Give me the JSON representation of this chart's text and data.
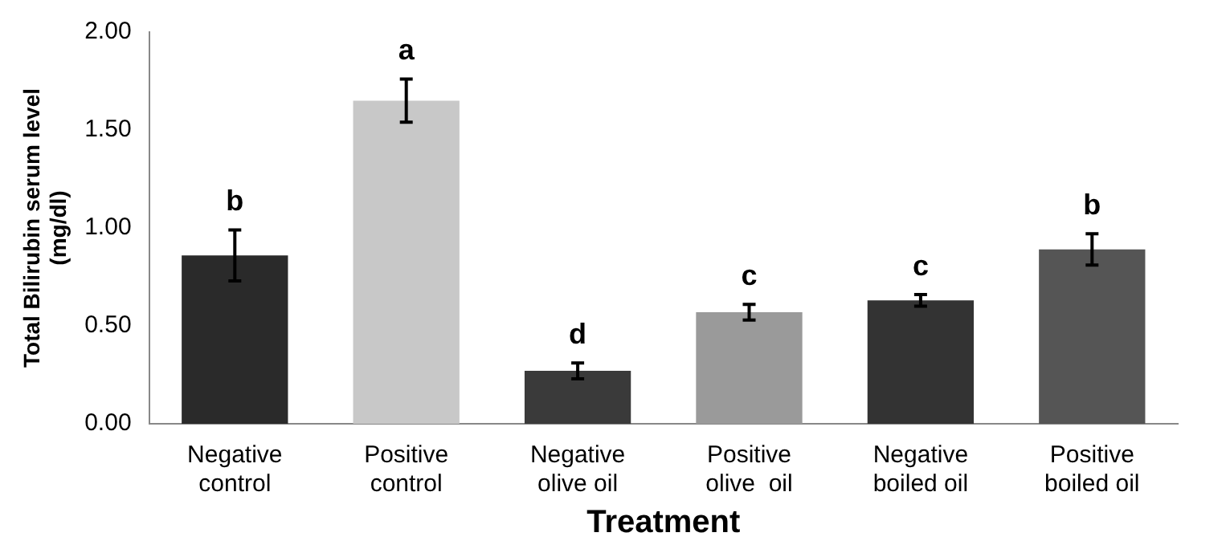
{
  "chart_data": {
    "type": "bar",
    "xlabel": "Treatment",
    "ylabel": "Total Bilirubin serum level (mg/dl)",
    "categories": [
      "Negative control",
      "Positive control",
      "Negative olive oil",
      "Positive olive  oil",
      "Negative boiled oil",
      "Positive boiled oil"
    ],
    "values": [
      0.86,
      1.65,
      0.27,
      0.57,
      0.63,
      0.89
    ],
    "errors": [
      0.13,
      0.11,
      0.04,
      0.04,
      0.03,
      0.08
    ],
    "colors": [
      "#2a2a2a",
      "#c8c8c8",
      "#3a3a3a",
      "#9a9a9a",
      "#333333",
      "#555555"
    ],
    "ylim": [
      0,
      2
    ],
    "yticks": [
      {
        "value": 0,
        "label": "0.00"
      },
      {
        "value": 0.5,
        "label": "0.50"
      },
      {
        "value": 1,
        "label": "1.00"
      },
      {
        "value": 1.5,
        "label": "1.50"
      },
      {
        "value": 2,
        "label": "2.00"
      }
    ],
    "grid": false,
    "annotations": [
      {
        "text": "b",
        "x": "Negative control",
        "y": 0.99
      },
      {
        "text": "a",
        "x": "Positive control",
        "y": 1.76
      },
      {
        "text": "d",
        "x": "Negative olive oil",
        "y": 0.31
      },
      {
        "text": "c",
        "x": "Positive olive  oil",
        "y": 0.61
      },
      {
        "text": "c",
        "x": "Negative boiled oil",
        "y": 0.66
      },
      {
        "text": "b",
        "x": "Positive boiled oil",
        "y": 0.97
      }
    ]
  }
}
